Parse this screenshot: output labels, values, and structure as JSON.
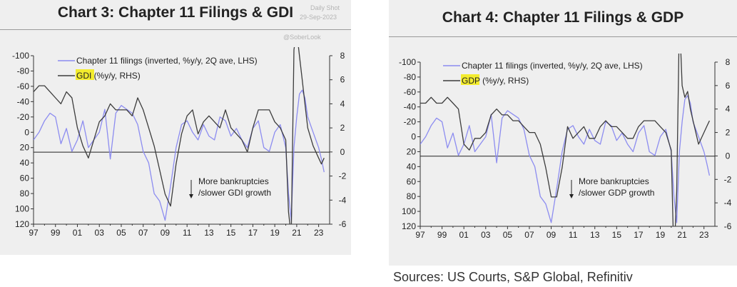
{
  "colors": {
    "filings": "#8c8cf0",
    "macro": "#3c3c3c",
    "highlight": "#f3ec2e",
    "axis": "#333333"
  },
  "watermark": {
    "brand": "Daily Shot",
    "date": "29-Sep-2023",
    "handle": "@SoberLook"
  },
  "chart_data": [
    {
      "type": "line",
      "title": "Chart 3: Chapter 11 Filings & GDI",
      "lhs_ticks": [
        "-100",
        "-80",
        "-60",
        "-40",
        "-20",
        "0",
        "20",
        "40",
        "60",
        "80",
        "100",
        "120"
      ],
      "rhs_ticks": [
        "8",
        "6",
        "4",
        "2",
        "0",
        "-2",
        "-4",
        "-6"
      ],
      "x_ticks": [
        "97",
        "99",
        "01",
        "03",
        "05",
        "07",
        "09",
        "11",
        "13",
        "15",
        "17",
        "19",
        "21",
        "23"
      ],
      "xlim": [
        1997,
        2024
      ],
      "lhs_ylim": [
        -100,
        120
      ],
      "rhs_ylim": [
        -6,
        8
      ],
      "reference_lhs": 26,
      "legend": {
        "filings": "Chapter 11 filings (inverted, %y/y, 2Q ave, LHS)",
        "macro_key": "GDI",
        "macro_rest": " (%y/y, RHS)"
      },
      "annotation": [
        "More bankruptcies",
        "/slower GDI growth"
      ],
      "series": [
        {
          "name": "Chapter 11 filings (inverted, %y/y, 2Q ave, LHS)",
          "axis": "lhs",
          "x": [
            1997,
            1997.5,
            1998,
            1998.5,
            1999,
            1999.5,
            2000,
            2000.5,
            2001,
            2001.5,
            2002,
            2002.5,
            2003,
            2003.5,
            2004,
            2004.5,
            2005,
            2005.5,
            2006,
            2006.5,
            2007,
            2007.5,
            2008,
            2008.5,
            2009,
            2009.5,
            2010,
            2010.5,
            2011,
            2011.5,
            2012,
            2012.5,
            2013,
            2013.5,
            2014,
            2014.5,
            2015,
            2015.5,
            2016,
            2016.5,
            2017,
            2017.5,
            2018,
            2018.5,
            2019,
            2019.5,
            2020,
            2020.25,
            2020.5,
            2020.75,
            2021,
            2021.25,
            2021.5,
            2021.75,
            2022,
            2022.5,
            2023,
            2023.25,
            2023.5
          ],
          "y": [
            10,
            0,
            -15,
            -25,
            -20,
            15,
            -5,
            25,
            10,
            -15,
            20,
            10,
            0,
            -30,
            35,
            -25,
            -35,
            -30,
            -25,
            -10,
            25,
            40,
            80,
            90,
            115,
            70,
            20,
            -10,
            -15,
            0,
            10,
            -10,
            5,
            10,
            -20,
            -15,
            5,
            -5,
            10,
            20,
            -5,
            -15,
            20,
            25,
            0,
            -10,
            20,
            80,
            115,
            20,
            -20,
            -50,
            -55,
            -45,
            -20,
            0,
            20,
            35,
            52
          ]
        },
        {
          "name": "GDI (%y/y, RHS)",
          "axis": "rhs",
          "x": [
            1997,
            1997.5,
            1998,
            1998.5,
            1999,
            1999.5,
            2000,
            2000.5,
            2001,
            2001.5,
            2002,
            2002.5,
            2003,
            2003.5,
            2004,
            2004.5,
            2005,
            2005.5,
            2006,
            2006.5,
            2007,
            2007.5,
            2008,
            2008.5,
            2009,
            2009.5,
            2010,
            2010.5,
            2011,
            2011.5,
            2012,
            2012.5,
            2013,
            2013.5,
            2014,
            2014.5,
            2015,
            2015.5,
            2016,
            2016.5,
            2017,
            2017.5,
            2018,
            2018.5,
            2019,
            2019.5,
            2020,
            2020.25,
            2020.5,
            2020.75,
            2021,
            2021.25,
            2021.5,
            2021.75,
            2022,
            2022.5,
            2023,
            2023.25,
            2023.5
          ],
          "y": [
            5,
            5.5,
            5.5,
            5,
            4.5,
            4,
            5,
            4.5,
            2,
            0.5,
            -0.5,
            1,
            2.5,
            3,
            4,
            3.5,
            3.5,
            3.5,
            3,
            4.5,
            3.5,
            2,
            0.5,
            -1.5,
            -3.5,
            -4.5,
            -1,
            1.5,
            3,
            3.5,
            1.5,
            2.5,
            3,
            2.5,
            2,
            3.5,
            2,
            1.5,
            1,
            0,
            2,
            3.5,
            3.5,
            3.5,
            2.5,
            2,
            1,
            -5,
            -7,
            8.5,
            10,
            8,
            6,
            4,
            2,
            0.5,
            -0.5,
            -1,
            -0.5
          ]
        }
      ]
    },
    {
      "type": "line",
      "title": "Chart 4: Chapter 11 Filings & GDP",
      "lhs_ticks": [
        "-100",
        "-80",
        "-60",
        "-40",
        "-20",
        "0",
        "20",
        "40",
        "60",
        "80",
        "100",
        "120"
      ],
      "rhs_ticks": [
        "8",
        "6",
        "4",
        "2",
        "0",
        "-2",
        "-4",
        "-6"
      ],
      "x_ticks": [
        "97",
        "99",
        "01",
        "03",
        "05",
        "07",
        "09",
        "11",
        "13",
        "15",
        "17",
        "19",
        "21",
        "23"
      ],
      "xlim": [
        1997,
        2024
      ],
      "lhs_ylim": [
        -100,
        120
      ],
      "rhs_ylim": [
        -6,
        8
      ],
      "reference_lhs": 26,
      "legend": {
        "filings": "Chapter 11 filings (inverted, %y/y, 2Q ave, LHS)",
        "macro_key": "GDP",
        "macro_rest": " (%y/y, RHS)"
      },
      "annotation": [
        "More bankruptcies",
        "/slower GDP growth"
      ],
      "series": [
        {
          "name": "Chapter 11 filings (inverted, %y/y, 2Q ave, LHS)",
          "axis": "lhs",
          "x": [
            1997,
            1997.5,
            1998,
            1998.5,
            1999,
            1999.5,
            2000,
            2000.5,
            2001,
            2001.5,
            2002,
            2002.5,
            2003,
            2003.5,
            2004,
            2004.5,
            2005,
            2005.5,
            2006,
            2006.5,
            2007,
            2007.5,
            2008,
            2008.5,
            2009,
            2009.5,
            2010,
            2010.5,
            2011,
            2011.5,
            2012,
            2012.5,
            2013,
            2013.5,
            2014,
            2014.5,
            2015,
            2015.5,
            2016,
            2016.5,
            2017,
            2017.5,
            2018,
            2018.5,
            2019,
            2019.5,
            2020,
            2020.25,
            2020.5,
            2020.75,
            2021,
            2021.25,
            2021.5,
            2021.75,
            2022,
            2022.5,
            2023,
            2023.25,
            2023.5
          ],
          "y": [
            10,
            0,
            -15,
            -25,
            -20,
            15,
            -5,
            25,
            10,
            -15,
            20,
            10,
            0,
            -30,
            35,
            -25,
            -35,
            -30,
            -25,
            -10,
            25,
            40,
            80,
            90,
            115,
            70,
            20,
            -10,
            -15,
            0,
            10,
            -10,
            5,
            10,
            -20,
            -15,
            5,
            -5,
            10,
            20,
            -5,
            -15,
            20,
            25,
            0,
            -10,
            20,
            80,
            115,
            20,
            -20,
            -50,
            -55,
            -45,
            -20,
            0,
            20,
            35,
            52
          ]
        },
        {
          "name": "GDP (%y/y, RHS)",
          "axis": "rhs",
          "x": [
            1997,
            1997.5,
            1998,
            1998.5,
            1999,
            1999.5,
            2000,
            2000.5,
            2001,
            2001.5,
            2002,
            2002.5,
            2003,
            2003.5,
            2004,
            2004.5,
            2005,
            2005.5,
            2006,
            2006.5,
            2007,
            2007.5,
            2008,
            2008.5,
            2009,
            2009.5,
            2010,
            2010.5,
            2011,
            2011.5,
            2012,
            2012.5,
            2013,
            2013.5,
            2014,
            2014.5,
            2015,
            2015.5,
            2016,
            2016.5,
            2017,
            2017.5,
            2018,
            2018.5,
            2019,
            2019.5,
            2020,
            2020.25,
            2020.5,
            2020.75,
            2021,
            2021.25,
            2021.5,
            2021.75,
            2022,
            2022.5,
            2023,
            2023.25,
            2023.5
          ],
          "y": [
            4.5,
            4.5,
            5,
            4.5,
            4.5,
            5,
            4.5,
            4,
            1,
            0.5,
            1.5,
            1.5,
            2,
            3.5,
            4,
            3.5,
            3.5,
            3,
            3,
            2.5,
            2,
            2,
            1,
            -1,
            -3.5,
            -3.5,
            -1,
            2.5,
            1.5,
            2,
            2.5,
            1.5,
            1.5,
            2.5,
            3,
            2.5,
            2.5,
            2,
            1.5,
            1.5,
            2.5,
            3,
            3,
            3,
            2.5,
            2,
            0.5,
            -9,
            -3,
            12,
            6,
            5,
            5.5,
            4,
            3,
            1,
            2,
            2.5,
            3
          ]
        }
      ]
    }
  ],
  "sources": "Sources: US Courts, S&P Global, Refinitiv"
}
